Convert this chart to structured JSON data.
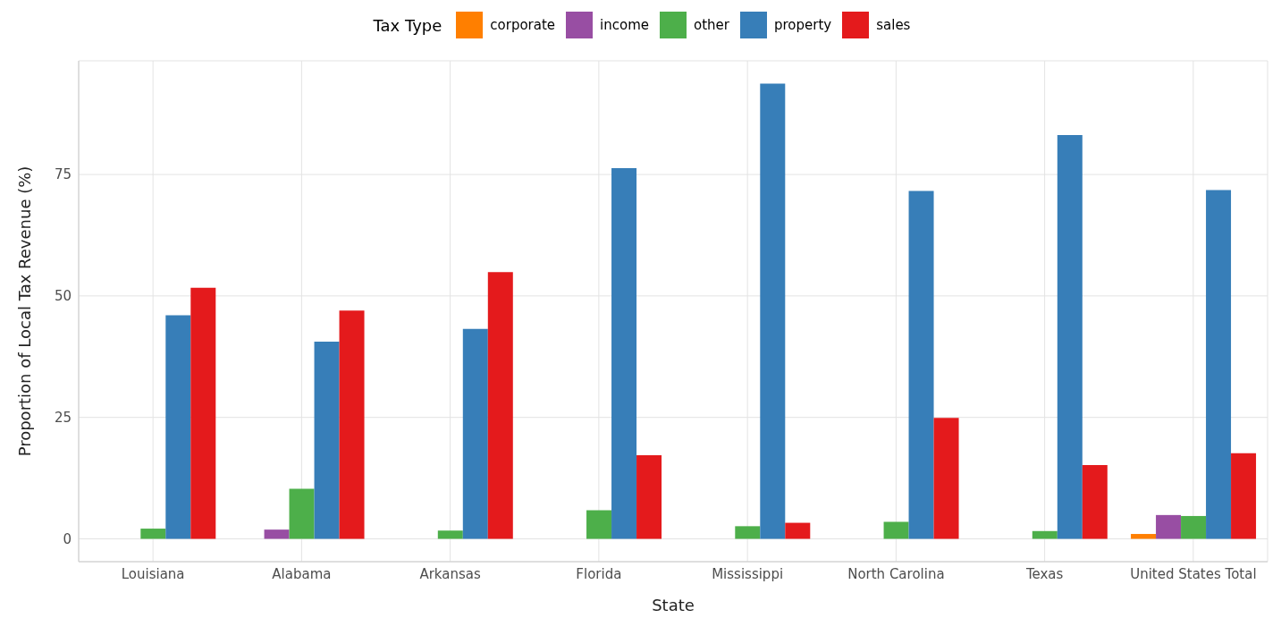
{
  "chart_data": {
    "type": "bar",
    "xlabel": "State",
    "ylabel": "Proportion of Local Tax Revenue (%)",
    "legend_title": "Tax Type",
    "legend": "top",
    "grid": true,
    "categories": [
      "Louisiana",
      "Alabama",
      "Arkansas",
      "Florida",
      "Mississippi",
      "North Carolina",
      "Texas",
      "United States Total"
    ],
    "ylim": [
      -4.7,
      98.4
    ],
    "yticks": [
      0,
      25,
      50,
      75
    ],
    "series": [
      {
        "name": "corporate",
        "color": "#ff7f00",
        "values": [
          null,
          null,
          null,
          null,
          null,
          null,
          null,
          1.0
        ]
      },
      {
        "name": "income",
        "color": "#984ea3",
        "values": [
          null,
          1.9,
          null,
          null,
          null,
          null,
          null,
          4.9
        ]
      },
      {
        "name": "other",
        "color": "#4daf4a",
        "values": [
          2.1,
          10.3,
          1.7,
          5.9,
          2.6,
          3.5,
          1.6,
          4.7
        ]
      },
      {
        "name": "property",
        "color": "#377eb8",
        "values": [
          46.0,
          40.6,
          43.2,
          76.3,
          93.7,
          71.6,
          83.1,
          71.8
        ]
      },
      {
        "name": "sales",
        "color": "#e41a1c",
        "values": [
          51.7,
          47.0,
          54.9,
          17.2,
          3.3,
          24.9,
          15.2,
          17.6
        ]
      }
    ]
  }
}
